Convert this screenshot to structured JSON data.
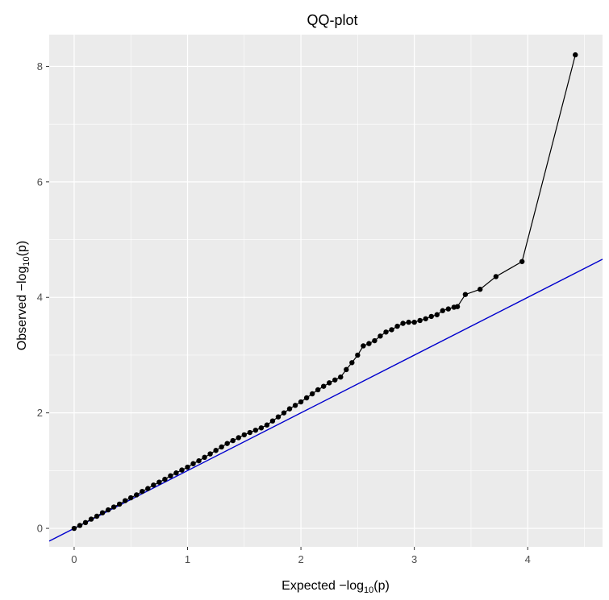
{
  "chart_data": {
    "type": "scatter",
    "title": "QQ-plot",
    "xlabel": {
      "prefix": "Expected  −log",
      "subscript": "10",
      "suffix": "(p)"
    },
    "ylabel": {
      "prefix": "Observed  −log",
      "subscript": "10",
      "suffix": "(p)"
    },
    "xlim": [
      -0.22,
      4.66
    ],
    "ylim": [
      -0.32,
      8.55
    ],
    "x_ticks": [
      {
        "value": 0,
        "label": "0"
      },
      {
        "value": 1,
        "label": "1"
      },
      {
        "value": 2,
        "label": "2"
      },
      {
        "value": 3,
        "label": "3"
      },
      {
        "value": 4,
        "label": "4"
      }
    ],
    "y_ticks": [
      {
        "value": 0,
        "label": "0"
      },
      {
        "value": 2,
        "label": "2"
      },
      {
        "value": 4,
        "label": "4"
      },
      {
        "value": 6,
        "label": "6"
      },
      {
        "value": 8,
        "label": "8"
      }
    ],
    "grid": true,
    "panel_background": "#ebebeb",
    "grid_color": "#ffffff",
    "reference_line": {
      "slope": 1,
      "intercept": 0,
      "color": "#0000cd"
    },
    "series": [
      {
        "color": "#000000",
        "connected": true,
        "x": [
          0.0,
          0.05,
          0.1,
          0.15,
          0.2,
          0.25,
          0.3,
          0.35,
          0.4,
          0.45,
          0.5,
          0.55,
          0.6,
          0.65,
          0.7,
          0.75,
          0.8,
          0.85,
          0.9,
          0.95,
          1.0,
          1.05,
          1.1,
          1.15,
          1.2,
          1.25,
          1.3,
          1.35,
          1.4,
          1.45,
          1.5,
          1.55,
          1.6,
          1.65,
          1.7,
          1.75,
          1.8,
          1.85,
          1.9,
          1.95,
          2.0,
          2.05,
          2.1,
          2.15,
          2.2,
          2.25,
          2.3,
          2.35,
          2.4,
          2.45,
          2.5,
          2.55,
          2.6,
          2.65,
          2.7,
          2.75,
          2.8,
          2.85,
          2.9,
          2.95,
          3.0,
          3.05,
          3.1,
          3.15,
          3.2,
          3.25,
          3.3,
          3.35,
          3.38,
          3.45,
          3.58,
          3.72,
          3.95,
          4.42
        ],
        "y": [
          0.0,
          0.05,
          0.1,
          0.16,
          0.21,
          0.27,
          0.32,
          0.37,
          0.42,
          0.48,
          0.53,
          0.58,
          0.64,
          0.69,
          0.75,
          0.8,
          0.85,
          0.91,
          0.96,
          1.01,
          1.06,
          1.12,
          1.17,
          1.23,
          1.29,
          1.35,
          1.41,
          1.47,
          1.52,
          1.57,
          1.62,
          1.66,
          1.7,
          1.74,
          1.79,
          1.86,
          1.93,
          2.0,
          2.07,
          2.13,
          2.19,
          2.26,
          2.33,
          2.4,
          2.46,
          2.52,
          2.57,
          2.62,
          2.75,
          2.87,
          3.0,
          3.16,
          3.2,
          3.25,
          3.33,
          3.4,
          3.44,
          3.5,
          3.55,
          3.57,
          3.57,
          3.6,
          3.63,
          3.67,
          3.7,
          3.77,
          3.8,
          3.83,
          3.84,
          4.05,
          4.14,
          4.36,
          4.62,
          8.2
        ]
      }
    ]
  }
}
